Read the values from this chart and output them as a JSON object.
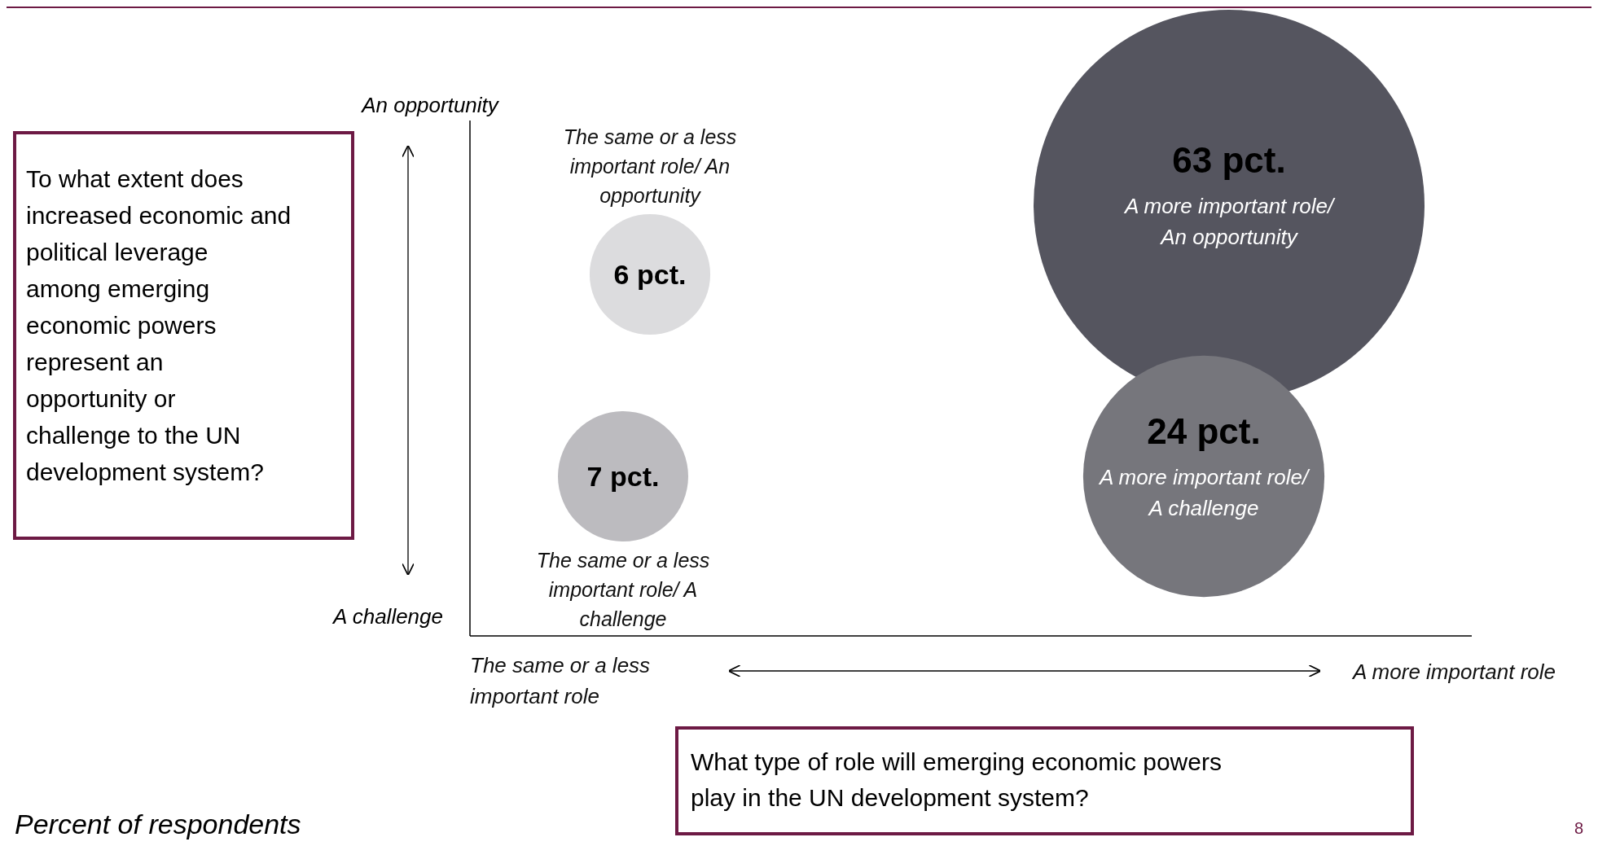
{
  "chart_data": {
    "type": "other",
    "categories": [
      "A more important role/ An opportunity",
      "A more important role/ A challenge",
      "The same or a less important role/ An opportunity",
      "The same or a less important role/ A challenge"
    ],
    "values": [
      63,
      24,
      6,
      7
    ],
    "value_labels": [
      "63 pct.",
      "24 pct.",
      "6 pct.",
      "7 pct."
    ],
    "colors": [
      "#55555f",
      "#76767c",
      "#dcdcde",
      "#bcbbbf"
    ],
    "annotations": [
      "An opportunity",
      "A challenge",
      "The same or a less important role",
      "A more important role",
      "To what extent does increased economic and political leverage among emerging economic powers represent an opportunity or challenge to the UN development system?",
      "What type of role will emerging economic powers play in the UN development system?",
      "Percent of respondents",
      "8"
    ]
  }
}
